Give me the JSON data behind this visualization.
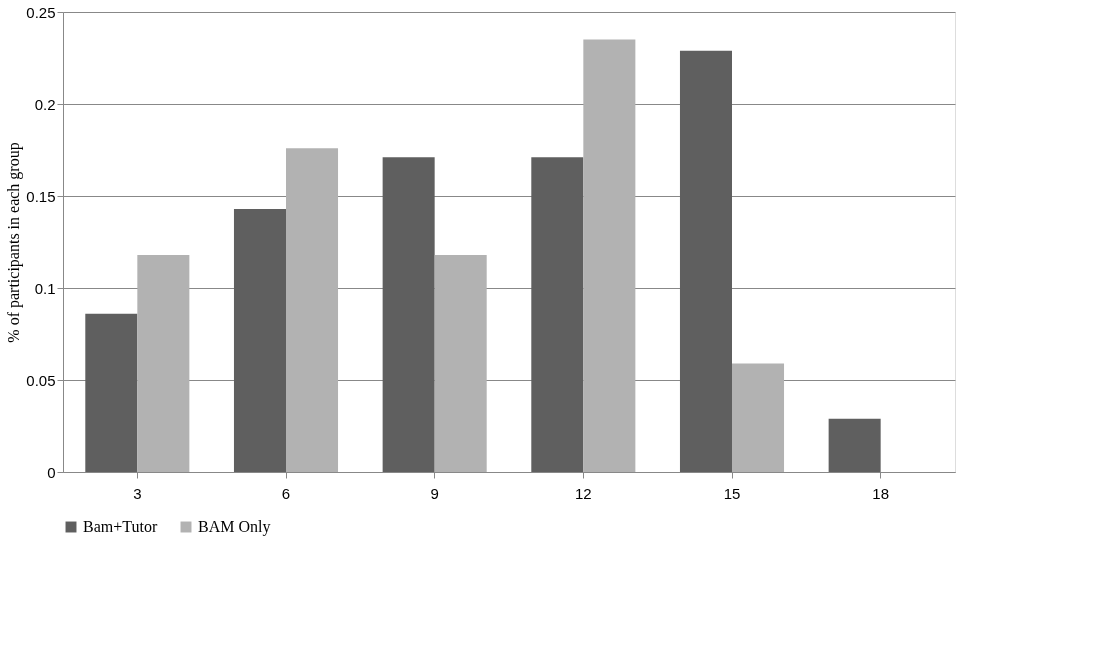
{
  "chart_data": {
    "type": "bar",
    "ylabel": "% of participants in each group",
    "categories": [
      "3",
      "6",
      "9",
      "12",
      "15",
      "18"
    ],
    "series": [
      {
        "name": "Bam+Tutor",
        "color": "#5f5f5f",
        "values": [
          0.086,
          0.143,
          0.171,
          0.171,
          0.229,
          0.029
        ]
      },
      {
        "name": "BAM Only",
        "color": "#b2b2b2",
        "values": [
          0.118,
          0.176,
          0.118,
          0.235,
          0.059,
          0
        ]
      }
    ],
    "ylim": [
      0,
      0.25
    ],
    "yticks": [
      0,
      0.05,
      0.1,
      0.15,
      0.2,
      0.25
    ],
    "grid": "y",
    "legend": "bottom"
  }
}
